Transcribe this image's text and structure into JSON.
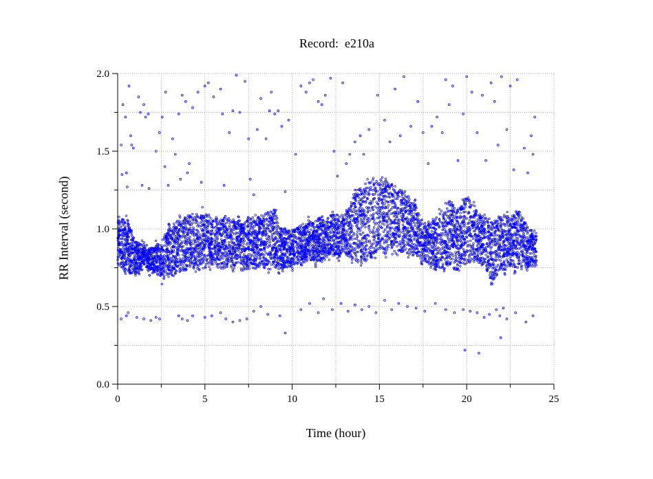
{
  "chart_data": {
    "type": "scatter",
    "title": "Record:  e210a",
    "xlabel": "Time (hour)",
    "ylabel": "RR Interval (second)",
    "xlim": [
      0,
      25
    ],
    "ylim": [
      0.0,
      2.0
    ],
    "xticks": [
      "0",
      "5",
      "10",
      "15",
      "20",
      "25"
    ],
    "yticks": [
      "0.0",
      "0.5",
      "1.0",
      "1.5",
      "2.0"
    ],
    "grid": true,
    "point_color": "#0000ff",
    "marker": "open-circle",
    "band": {
      "x": [
        0.0,
        0.5,
        1.0,
        1.5,
        2.0,
        2.5,
        3.0,
        3.5,
        4.0,
        4.5,
        5.0,
        5.5,
        6.0,
        6.5,
        7.0,
        7.5,
        8.0,
        8.5,
        9.0,
        9.5,
        10.0,
        10.5,
        11.0,
        11.5,
        12.0,
        12.5,
        13.0,
        13.5,
        14.0,
        14.5,
        15.0,
        15.5,
        16.0,
        16.5,
        17.0,
        17.5,
        18.0,
        18.5,
        19.0,
        19.5,
        20.0,
        20.5,
        21.0,
        21.5,
        22.0,
        22.5,
        23.0,
        23.5,
        24.0
      ],
      "low": [
        0.78,
        0.72,
        0.7,
        0.75,
        0.72,
        0.68,
        0.7,
        0.72,
        0.74,
        0.75,
        0.74,
        0.76,
        0.75,
        0.75,
        0.74,
        0.74,
        0.76,
        0.75,
        0.75,
        0.74,
        0.76,
        0.78,
        0.8,
        0.78,
        0.82,
        0.83,
        0.84,
        0.8,
        0.78,
        0.82,
        0.86,
        0.85,
        0.84,
        0.86,
        0.82,
        0.8,
        0.76,
        0.74,
        0.76,
        0.74,
        0.78,
        0.8,
        0.76,
        0.66,
        0.74,
        0.76,
        0.74,
        0.74,
        0.76
      ],
      "high": [
        1.05,
        1.08,
        0.92,
        0.9,
        0.88,
        0.92,
        1.02,
        1.06,
        1.08,
        1.1,
        1.1,
        1.05,
        1.08,
        1.06,
        1.04,
        1.06,
        1.08,
        1.1,
        1.12,
        0.98,
        1.0,
        1.02,
        1.04,
        1.06,
        1.08,
        1.1,
        1.08,
        1.22,
        1.3,
        1.33,
        1.33,
        1.3,
        1.28,
        1.22,
        1.18,
        1.02,
        1.05,
        1.12,
        1.18,
        1.12,
        1.22,
        1.12,
        1.08,
        1.06,
        1.08,
        1.1,
        1.12,
        1.02,
        0.96
      ]
    },
    "outliers": [
      [
        0.2,
        1.54
      ],
      [
        0.25,
        1.35
      ],
      [
        0.3,
        1.8
      ],
      [
        0.45,
        1.72
      ],
      [
        0.5,
        1.36
      ],
      [
        0.55,
        1.27
      ],
      [
        0.65,
        1.92
      ],
      [
        0.75,
        1.6
      ],
      [
        0.8,
        1.54
      ],
      [
        0.9,
        1.52
      ],
      [
        1.2,
        1.85
      ],
      [
        1.3,
        1.75
      ],
      [
        1.4,
        1.28
      ],
      [
        1.5,
        1.8
      ],
      [
        1.6,
        1.72
      ],
      [
        1.75,
        1.74
      ],
      [
        1.8,
        1.26
      ],
      [
        2.2,
        1.5
      ],
      [
        2.4,
        1.62
      ],
      [
        2.55,
        1.72
      ],
      [
        2.7,
        1.4
      ],
      [
        2.75,
        1.88
      ],
      [
        2.9,
        1.28
      ],
      [
        3.15,
        1.58
      ],
      [
        3.3,
        1.48
      ],
      [
        3.5,
        1.74
      ],
      [
        3.6,
        1.32
      ],
      [
        3.7,
        1.86
      ],
      [
        3.9,
        1.82
      ],
      [
        4.0,
        1.36
      ],
      [
        4.1,
        1.42
      ],
      [
        4.3,
        1.78
      ],
      [
        4.6,
        1.88
      ],
      [
        4.8,
        1.3
      ],
      [
        5.0,
        1.92
      ],
      [
        5.2,
        1.94
      ],
      [
        5.5,
        1.85
      ],
      [
        5.9,
        1.9
      ],
      [
        6.0,
        1.74
      ],
      [
        6.1,
        1.28
      ],
      [
        6.4,
        1.62
      ],
      [
        6.6,
        1.76
      ],
      [
        6.8,
        1.99
      ],
      [
        7.0,
        1.75
      ],
      [
        7.3,
        1.95
      ],
      [
        7.5,
        1.58
      ],
      [
        7.6,
        1.32
      ],
      [
        7.8,
        1.22
      ],
      [
        8.0,
        1.64
      ],
      [
        8.2,
        1.84
      ],
      [
        8.5,
        1.58
      ],
      [
        8.7,
        1.76
      ],
      [
        8.8,
        1.88
      ],
      [
        9.0,
        1.74
      ],
      [
        9.2,
        1.76
      ],
      [
        9.4,
        1.66
      ],
      [
        9.6,
        1.24
      ],
      [
        9.8,
        1.7
      ],
      [
        10.2,
        1.48
      ],
      [
        10.5,
        1.92
      ],
      [
        10.8,
        1.88
      ],
      [
        11.0,
        1.94
      ],
      [
        11.2,
        1.96
      ],
      [
        11.5,
        1.82
      ],
      [
        11.7,
        1.8
      ],
      [
        11.9,
        1.86
      ],
      [
        12.2,
        1.97
      ],
      [
        12.4,
        1.5
      ],
      [
        12.6,
        1.34
      ],
      [
        12.9,
        1.94
      ],
      [
        13.1,
        1.42
      ],
      [
        13.3,
        1.48
      ],
      [
        13.6,
        1.56
      ],
      [
        13.9,
        1.6
      ],
      [
        14.1,
        1.48
      ],
      [
        14.4,
        1.64
      ],
      [
        14.9,
        1.86
      ],
      [
        15.3,
        1.7
      ],
      [
        15.6,
        1.56
      ],
      [
        15.9,
        1.9
      ],
      [
        16.2,
        1.6
      ],
      [
        16.4,
        1.98
      ],
      [
        16.8,
        1.66
      ],
      [
        17.2,
        1.82
      ],
      [
        17.5,
        1.62
      ],
      [
        17.8,
        1.42
      ],
      [
        18.0,
        1.66
      ],
      [
        18.3,
        1.72
      ],
      [
        18.6,
        1.62
      ],
      [
        18.8,
        1.96
      ],
      [
        19.0,
        1.8
      ],
      [
        19.2,
        1.92
      ],
      [
        19.5,
        1.44
      ],
      [
        19.8,
        1.74
      ],
      [
        20.0,
        1.98
      ],
      [
        20.3,
        1.88
      ],
      [
        20.6,
        1.62
      ],
      [
        20.9,
        1.86
      ],
      [
        21.1,
        1.44
      ],
      [
        21.4,
        1.94
      ],
      [
        21.6,
        1.82
      ],
      [
        21.8,
        1.54
      ],
      [
        22.0,
        1.98
      ],
      [
        22.3,
        1.64
      ],
      [
        22.5,
        1.92
      ],
      [
        22.7,
        1.38
      ],
      [
        22.9,
        1.96
      ],
      [
        23.3,
        1.52
      ],
      [
        23.5,
        1.36
      ],
      [
        23.7,
        1.6
      ],
      [
        23.9,
        1.72
      ],
      [
        23.8,
        1.48
      ],
      [
        0.2,
        0.42
      ],
      [
        0.5,
        0.44
      ],
      [
        0.6,
        0.46
      ],
      [
        1.1,
        0.43
      ],
      [
        1.5,
        0.42
      ],
      [
        1.9,
        0.41
      ],
      [
        2.2,
        0.43
      ],
      [
        2.4,
        0.42
      ],
      [
        3.5,
        0.44
      ],
      [
        3.7,
        0.42
      ],
      [
        4.0,
        0.41
      ],
      [
        4.3,
        0.44
      ],
      [
        5.0,
        0.43
      ],
      [
        5.4,
        0.44
      ],
      [
        5.9,
        0.46
      ],
      [
        6.2,
        0.42
      ],
      [
        6.6,
        0.4
      ],
      [
        7.0,
        0.41
      ],
      [
        7.4,
        0.42
      ],
      [
        7.8,
        0.47
      ],
      [
        8.2,
        0.5
      ],
      [
        8.6,
        0.45
      ],
      [
        9.3,
        0.44
      ],
      [
        9.6,
        0.33
      ],
      [
        10.5,
        0.48
      ],
      [
        11.0,
        0.52
      ],
      [
        11.5,
        0.46
      ],
      [
        11.8,
        0.55
      ],
      [
        12.3,
        0.48
      ],
      [
        12.8,
        0.52
      ],
      [
        13.2,
        0.47
      ],
      [
        13.6,
        0.51
      ],
      [
        14.0,
        0.48
      ],
      [
        14.4,
        0.5
      ],
      [
        14.8,
        0.46
      ],
      [
        15.3,
        0.54
      ],
      [
        15.7,
        0.48
      ],
      [
        16.1,
        0.52
      ],
      [
        16.6,
        0.5
      ],
      [
        17.1,
        0.49
      ],
      [
        17.6,
        0.47
      ],
      [
        18.2,
        0.52
      ],
      [
        18.8,
        0.48
      ],
      [
        19.3,
        0.46
      ],
      [
        19.8,
        0.48
      ],
      [
        20.2,
        0.47
      ],
      [
        20.6,
        0.46
      ],
      [
        21.0,
        0.43
      ],
      [
        21.3,
        0.45
      ],
      [
        21.9,
        0.44
      ],
      [
        22.3,
        0.42
      ],
      [
        22.8,
        0.46
      ],
      [
        23.4,
        0.4
      ],
      [
        23.8,
        0.44
      ],
      [
        21.95,
        0.3
      ],
      [
        19.9,
        0.22
      ],
      [
        20.7,
        0.2
      ],
      [
        21.7,
        0.48
      ],
      [
        22.1,
        0.49
      ]
    ]
  }
}
